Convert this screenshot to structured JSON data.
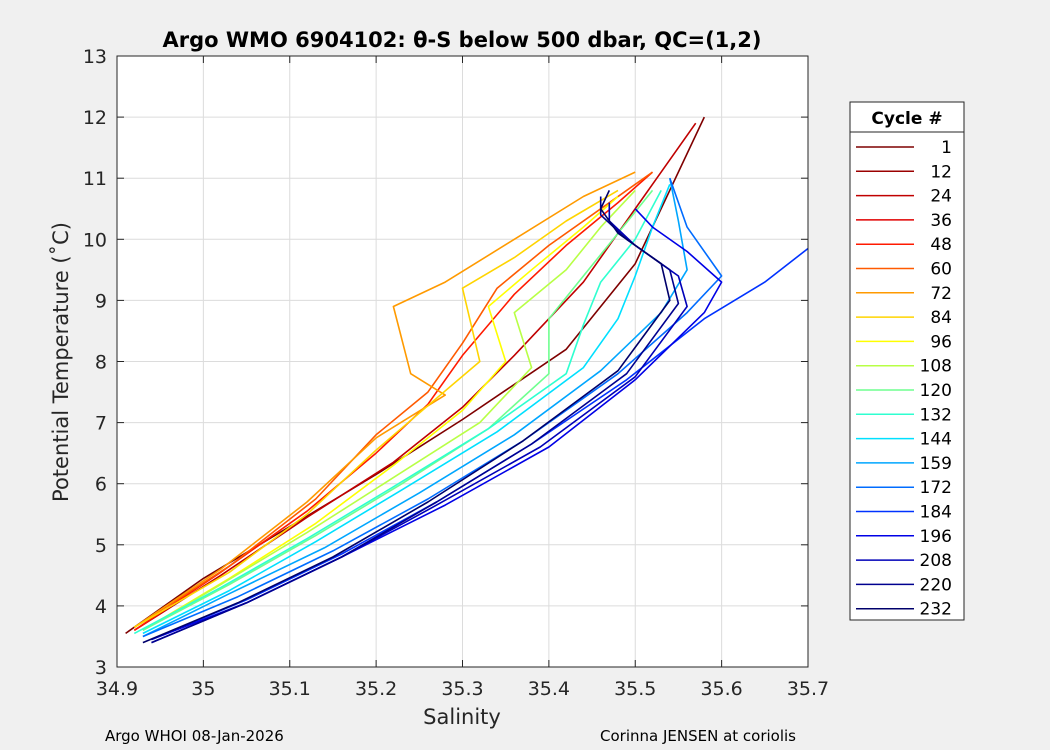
{
  "chart_data": {
    "type": "line",
    "title": "Argo WMO 6904102: θ-S below 500 dbar,  QC=(1,2)",
    "xlabel": "Salinity",
    "ylabel": "Potential Temperature (˚C)",
    "xlim": [
      34.9,
      35.7
    ],
    "ylim": [
      3,
      13
    ],
    "xticks": [
      "34.9",
      "35",
      "35.1",
      "35.2",
      "35.3",
      "35.4",
      "35.5",
      "35.6",
      "35.7"
    ],
    "yticks": [
      "3",
      "4",
      "5",
      "6",
      "7",
      "8",
      "9",
      "10",
      "11",
      "12",
      "13"
    ],
    "grid": true,
    "legend": {
      "title": "Cycle #",
      "placement": "outside-right",
      "entries": [
        "1",
        "12",
        "24",
        "36",
        "48",
        "60",
        "72",
        "84",
        "96",
        "108",
        "120",
        "132",
        "144",
        "159",
        "172",
        "184",
        "196",
        "208",
        "220",
        "232"
      ],
      "colors": [
        "#7f0000",
        "#9b0000",
        "#c00000",
        "#e00000",
        "#ff1a00",
        "#ff5a00",
        "#ff9a00",
        "#ffd400",
        "#ffff00",
        "#b8ff46",
        "#6fff8f",
        "#2fffd0",
        "#00e0ff",
        "#00a6ff",
        "#006cff",
        "#0032ff",
        "#0000e6",
        "#0000b8",
        "#00008f",
        "#00006b"
      ]
    },
    "series": [
      {
        "color": "#7f0000",
        "x": [
          34.91,
          35.0,
          35.1,
          35.2,
          35.3,
          35.42,
          35.5,
          35.58
        ],
        "y": [
          3.55,
          4.45,
          5.3,
          6.15,
          7.05,
          8.2,
          9.6,
          12.0
        ]
      },
      {
        "color": "#c00000",
        "x": [
          34.92,
          35.02,
          35.12,
          35.22,
          35.3,
          35.36,
          35.44,
          35.52,
          35.57
        ],
        "y": [
          3.6,
          4.5,
          5.45,
          6.35,
          7.25,
          8.1,
          9.3,
          10.9,
          11.9
        ]
      },
      {
        "color": "#ff1a00",
        "x": [
          34.92,
          35.02,
          35.12,
          35.2,
          35.26,
          35.3,
          35.36,
          35.42,
          35.48,
          35.52
        ],
        "y": [
          3.6,
          4.55,
          5.55,
          6.5,
          7.3,
          8.1,
          9.1,
          9.9,
          10.6,
          11.1
        ]
      },
      {
        "color": "#ff5a00",
        "x": [
          34.92,
          35.03,
          35.13,
          35.2,
          35.26,
          35.3,
          35.34,
          35.4,
          35.46,
          35.52
        ],
        "y": [
          3.65,
          4.65,
          5.75,
          6.8,
          7.5,
          8.3,
          9.2,
          9.9,
          10.5,
          11.1
        ]
      },
      {
        "color": "#ff9a00",
        "x": [
          34.92,
          35.02,
          35.12,
          35.2,
          35.28,
          35.24,
          35.22,
          35.28,
          35.36,
          35.44,
          35.5
        ],
        "y": [
          3.65,
          4.6,
          5.7,
          6.75,
          7.45,
          7.8,
          8.9,
          9.3,
          10.0,
          10.7,
          11.1
        ]
      },
      {
        "color": "#ffd400",
        "x": [
          34.92,
          35.03,
          35.12,
          35.2,
          35.27,
          35.32,
          35.3,
          35.36,
          35.42,
          35.48
        ],
        "y": [
          3.65,
          4.55,
          5.5,
          6.55,
          7.4,
          8.0,
          9.2,
          9.7,
          10.3,
          10.8
        ]
      },
      {
        "color": "#ffff00",
        "x": [
          34.93,
          35.03,
          35.13,
          35.22,
          35.3,
          35.35,
          35.33,
          35.38,
          35.44,
          35.48
        ],
        "y": [
          3.6,
          4.45,
          5.35,
          6.3,
          7.2,
          8.0,
          8.9,
          9.5,
          10.2,
          10.7
        ]
      },
      {
        "color": "#b8ff46",
        "x": [
          34.93,
          35.02,
          35.12,
          35.22,
          35.32,
          35.38,
          35.36,
          35.42,
          35.46,
          35.5
        ],
        "y": [
          3.6,
          4.35,
          5.2,
          6.1,
          7.0,
          7.9,
          8.8,
          9.5,
          10.2,
          10.8
        ]
      },
      {
        "color": "#6fff8f",
        "x": [
          34.93,
          35.03,
          35.13,
          35.23,
          35.33,
          35.4,
          35.4,
          35.44,
          35.48,
          35.52
        ],
        "y": [
          3.6,
          4.35,
          5.15,
          6.0,
          6.9,
          7.8,
          8.7,
          9.4,
          10.1,
          10.8
        ]
      },
      {
        "color": "#2fffd0",
        "x": [
          34.92,
          35.02,
          35.12,
          35.22,
          35.33,
          35.42,
          35.44,
          35.46,
          35.5,
          35.53
        ],
        "y": [
          3.55,
          4.3,
          5.1,
          5.95,
          6.9,
          7.8,
          8.6,
          9.3,
          10.0,
          10.8
        ]
      },
      {
        "color": "#00e0ff",
        "x": [
          34.93,
          35.03,
          35.13,
          35.23,
          35.34,
          35.44,
          35.48,
          35.5,
          35.52,
          35.54
        ],
        "y": [
          3.55,
          4.25,
          5.05,
          5.9,
          6.85,
          7.9,
          8.7,
          9.4,
          10.2,
          10.9
        ]
      },
      {
        "color": "#00a6ff",
        "x": [
          34.93,
          35.03,
          35.14,
          35.25,
          35.36,
          35.46,
          35.53,
          35.56,
          35.55,
          35.54
        ],
        "y": [
          3.5,
          4.2,
          4.95,
          5.85,
          6.8,
          7.85,
          8.8,
          9.5,
          10.3,
          11.0
        ]
      },
      {
        "color": "#006cff",
        "x": [
          34.93,
          35.04,
          35.15,
          35.26,
          35.37,
          35.48,
          35.56,
          35.6,
          35.56,
          35.54
        ],
        "y": [
          3.5,
          4.15,
          4.9,
          5.75,
          6.7,
          7.8,
          8.8,
          9.4,
          10.2,
          11.0
        ]
      },
      {
        "color": "#0032ff",
        "x": [
          34.94,
          35.05,
          35.16,
          35.27,
          35.38,
          35.49,
          35.58,
          35.65,
          35.7
        ],
        "y": [
          3.45,
          4.1,
          4.85,
          5.7,
          6.65,
          7.7,
          8.7,
          9.3,
          9.85
        ]
      },
      {
        "color": "#0000e6",
        "x": [
          34.94,
          35.05,
          35.16,
          35.28,
          35.4,
          35.5,
          35.58,
          35.6,
          35.56,
          35.52,
          35.5
        ],
        "y": [
          3.45,
          4.05,
          4.8,
          5.65,
          6.6,
          7.7,
          8.8,
          9.3,
          9.8,
          10.2,
          10.5
        ]
      },
      {
        "color": "#0000b8",
        "x": [
          34.94,
          35.05,
          35.16,
          35.27,
          35.39,
          35.5,
          35.56,
          35.55,
          35.5,
          35.47,
          35.47
        ],
        "y": [
          3.4,
          4.05,
          4.8,
          5.65,
          6.6,
          7.75,
          8.9,
          9.4,
          9.9,
          10.3,
          10.6
        ]
      },
      {
        "color": "#00008f",
        "x": [
          34.94,
          35.05,
          35.16,
          35.27,
          35.38,
          35.49,
          35.55,
          35.54,
          35.49,
          35.46,
          35.46
        ],
        "y": [
          3.4,
          4.05,
          4.8,
          5.7,
          6.65,
          7.8,
          8.95,
          9.5,
          10.0,
          10.4,
          10.7
        ]
      },
      {
        "color": "#00006b",
        "x": [
          34.93,
          35.04,
          35.15,
          35.26,
          35.37,
          35.48,
          35.54,
          35.53,
          35.48,
          35.46,
          35.47
        ],
        "y": [
          3.4,
          4.05,
          4.8,
          5.7,
          6.7,
          7.85,
          9.0,
          9.6,
          10.1,
          10.5,
          10.8
        ]
      }
    ]
  },
  "footer": {
    "left": "Argo WHOI 08-Jan-2026",
    "right": "Corinna JENSEN at coriolis"
  }
}
